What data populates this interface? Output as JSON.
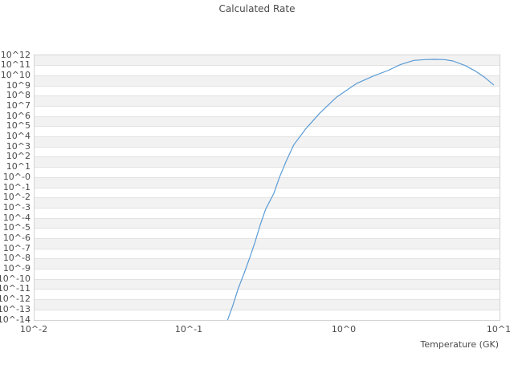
{
  "title": "Calculated Rate",
  "chart_data": {
    "type": "line",
    "title": "Calculated Rate",
    "xlabel": "Temperature (GK)",
    "ylabel": "",
    "x_scale": "log10",
    "y_scale": "log10",
    "xlim_log10": [
      -2,
      1
    ],
    "ylim_log10": [
      -14,
      12
    ],
    "x_tick_labels": [
      "10^-2",
      "10^-1",
      "10^0",
      "10^1"
    ],
    "y_tick_labels": [
      "10^12",
      "10^11",
      "10^10",
      "10^9",
      "10^8",
      "10^7",
      "10^6",
      "10^5",
      "10^4",
      "10^3",
      "10^2",
      "10^1",
      "10^-0",
      "10^-1",
      "10^-2",
      "10^-3",
      "10^-4",
      "10^-5",
      "10^-6",
      "10^-7",
      "10^-8",
      "10^-9",
      "10^-10",
      "10^-11",
      "10^-12",
      "10^-13",
      "10^-14"
    ],
    "grid": "horizontal-alternating-bands",
    "legend": "none",
    "colors": {
      "line": "#5b9bd5",
      "band": "#f2f2f2",
      "gridline": "#e2e2e2",
      "plot_border": "#d4d4d4",
      "text": "#4a4a4a",
      "background": "#ffffff"
    },
    "series": [
      {
        "name": "Calculated Rate",
        "points_T_GK_vs_log10_rate": [
          [
            0.175,
            -14.1
          ],
          [
            0.19,
            -12.6
          ],
          [
            0.205,
            -11.0
          ],
          [
            0.225,
            -9.4
          ],
          [
            0.245,
            -7.85
          ],
          [
            0.265,
            -6.3
          ],
          [
            0.285,
            -4.7
          ],
          [
            0.31,
            -3.1
          ],
          [
            0.35,
            -1.55
          ],
          [
            0.38,
            0.0
          ],
          [
            0.42,
            1.6
          ],
          [
            0.47,
            3.2
          ],
          [
            0.56,
            4.75
          ],
          [
            0.69,
            6.3
          ],
          [
            0.89,
            7.9
          ],
          [
            1.2,
            9.25
          ],
          [
            1.55,
            10.0
          ],
          [
            1.9,
            10.5
          ],
          [
            2.3,
            11.1
          ],
          [
            2.8,
            11.5
          ],
          [
            3.3,
            11.58
          ],
          [
            3.8,
            11.61
          ],
          [
            4.4,
            11.58
          ],
          [
            5.0,
            11.45
          ],
          [
            6.0,
            11.0
          ],
          [
            7.0,
            10.45
          ],
          [
            8.0,
            9.85
          ],
          [
            9.15,
            9.1
          ]
        ]
      }
    ]
  }
}
